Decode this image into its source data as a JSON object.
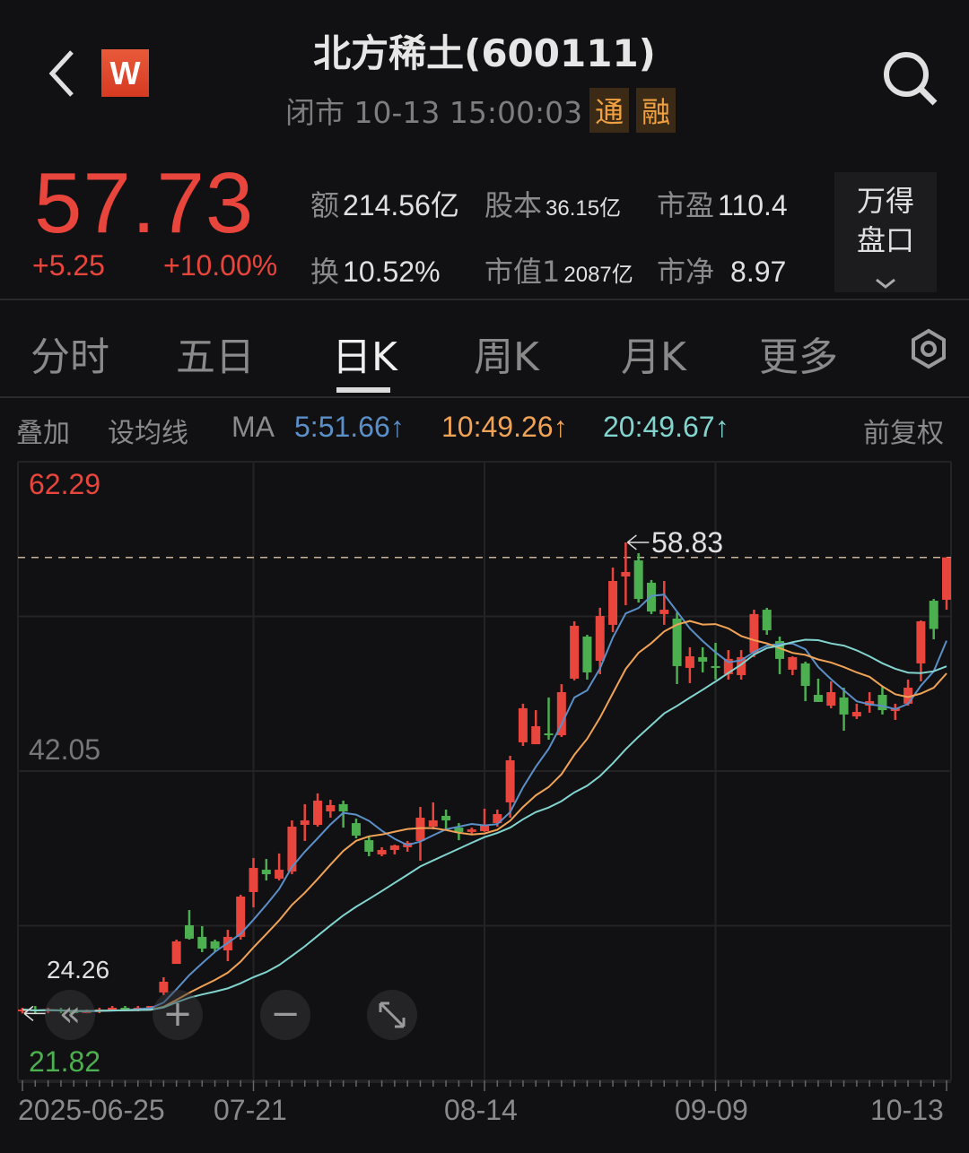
{
  "header": {
    "title": "北方稀土(600111)",
    "status": "闭市 10-13 15:00:03",
    "tags": [
      "通",
      "融"
    ],
    "logo_letter": "W",
    "icons": {
      "back": "chevron-left-icon",
      "search": "search-icon",
      "settings": "settings-hexagon-icon"
    }
  },
  "quote": {
    "price": "57.73",
    "change": "+5.25",
    "change_pct": "+10.00%",
    "stats": [
      {
        "key": "额",
        "value": "214.56亿",
        "small": false
      },
      {
        "key": "股本",
        "value": "36.15亿",
        "small": true
      },
      {
        "key": "市盈",
        "value": "110.4",
        "small": false
      },
      {
        "key": "换",
        "value": "10.52%",
        "small": false
      },
      {
        "key": "市值1",
        "value": "2087亿",
        "small": true
      },
      {
        "key": "市净",
        "value": "8.97",
        "small": false
      }
    ],
    "wind_button": [
      "万得",
      "盘口"
    ]
  },
  "tabs": [
    {
      "label": "分时",
      "active": false
    },
    {
      "label": "五日",
      "active": false
    },
    {
      "label": "日K",
      "active": true
    },
    {
      "label": "周K",
      "active": false
    },
    {
      "label": "月K",
      "active": false
    },
    {
      "label": "更多",
      "active": false
    }
  ],
  "ma_bar": {
    "overlay": "叠加",
    "set_ma": "设均线",
    "ma": "MA",
    "ma5": "5:51.66↑",
    "ma10": "10:49.26↑",
    "ma20": "20:49.67↑",
    "adjust": "前复权"
  },
  "colors": {
    "up": "#e8453c",
    "down": "#4caf50",
    "ma5": "#5b8fc7",
    "ma10": "#f0a356",
    "ma20": "#82d4cf",
    "background": "#111113"
  },
  "chart_data": {
    "type": "candlestick",
    "ylim": [
      19.35,
      64.75
    ],
    "y_labels": {
      "top": "62.29",
      "mid": "42.05",
      "bottom": "21.82"
    },
    "high_marker": "58.83",
    "low_marker": "24.26",
    "last_price": 57.73,
    "x_ticks": [
      {
        "label": "2025-06-25",
        "index": 0
      },
      {
        "label": "07-21",
        "index": 18
      },
      {
        "label": "08-14",
        "index": 36
      },
      {
        "label": "09-09",
        "index": 54
      },
      {
        "label": "10-13",
        "index": 72
      }
    ],
    "ma_periods": [
      5,
      10,
      20
    ],
    "ohlc": [
      [
        24.42,
        24.68,
        24.26,
        24.55
      ],
      [
        24.55,
        24.81,
        24.28,
        24.42
      ],
      [
        24.42,
        24.68,
        24.28,
        24.55
      ],
      [
        24.55,
        24.68,
        24.28,
        24.42
      ],
      [
        24.42,
        24.55,
        24.28,
        24.28
      ],
      [
        24.28,
        24.55,
        24.28,
        24.42
      ],
      [
        24.42,
        24.68,
        24.28,
        24.55
      ],
      [
        24.55,
        24.81,
        24.42,
        24.68
      ],
      [
        24.68,
        24.81,
        24.42,
        24.55
      ],
      [
        24.55,
        24.81,
        24.42,
        24.68
      ],
      [
        24.68,
        24.81,
        24.55,
        24.81
      ],
      [
        25.8,
        26.92,
        25.6,
        26.59
      ],
      [
        27.9,
        29.68,
        27.9,
        29.55
      ],
      [
        30.73,
        31.85,
        29.68,
        29.75
      ],
      [
        29.88,
        30.67,
        28.76,
        29.02
      ],
      [
        29.55,
        29.68,
        28.76,
        29.02
      ],
      [
        28.89,
        30.4,
        28.1,
        29.88
      ],
      [
        29.88,
        32.97,
        29.68,
        32.84
      ],
      [
        33.17,
        35.67,
        32.05,
        34.94
      ],
      [
        34.81,
        35.6,
        34.02,
        34.48
      ],
      [
        34.15,
        36.0,
        34.02,
        34.81
      ],
      [
        34.68,
        38.43,
        34.48,
        37.97
      ],
      [
        38.1,
        39.62,
        36.92,
        38.43
      ],
      [
        38.1,
        40.41,
        37.97,
        39.88
      ],
      [
        39.09,
        39.94,
        38.63,
        39.55
      ],
      [
        39.62,
        39.88,
        37.9,
        39.09
      ],
      [
        38.23,
        38.56,
        37.11,
        37.31
      ],
      [
        36.98,
        37.25,
        35.8,
        36.13
      ],
      [
        35.93,
        36.46,
        35.8,
        36.26
      ],
      [
        36.26,
        36.65,
        35.93,
        36.59
      ],
      [
        36.46,
        36.92,
        36.13,
        36.79
      ],
      [
        36.92,
        39.42,
        35.47,
        38.63
      ],
      [
        37.97,
        39.75,
        37.77,
        38.43
      ],
      [
        38.76,
        39.22,
        37.77,
        38.43
      ],
      [
        37.9,
        38.23,
        36.98,
        37.58
      ],
      [
        37.58,
        37.9,
        37.45,
        37.77
      ],
      [
        37.64,
        39.29,
        37.58,
        38.1
      ],
      [
        38.23,
        39.22,
        37.97,
        38.89
      ],
      [
        39.75,
        43.17,
        38.63,
        42.84
      ],
      [
        44.16,
        46.99,
        43.89,
        46.66
      ],
      [
        44.02,
        46.52,
        44.02,
        45.34
      ],
      [
        44.81,
        47.45,
        44.35,
        44.68
      ],
      [
        44.68,
        48.43,
        44.55,
        47.84
      ],
      [
        48.83,
        53.04,
        48.7,
        52.71
      ],
      [
        51.92,
        52.05,
        48.76,
        49.29
      ],
      [
        50.14,
        54.03,
        49.16,
        53.43
      ],
      [
        52.78,
        56.99,
        52.25,
        56.0
      ],
      [
        56.33,
        58.83,
        54.22,
        56.66
      ],
      [
        57.51,
        58.04,
        54.42,
        54.68
      ],
      [
        55.87,
        56.07,
        53.57,
        53.76
      ],
      [
        53.57,
        56.0,
        52.78,
        53.89
      ],
      [
        53.24,
        53.7,
        48.43,
        49.75
      ],
      [
        49.62,
        51.13,
        48.5,
        50.47
      ],
      [
        50.41,
        51.13,
        49.29,
        50.08
      ],
      [
        49.75,
        51.46,
        48.76,
        49.62
      ],
      [
        49.16,
        50.93,
        48.76,
        50.28
      ],
      [
        49.09,
        50.93,
        48.76,
        50.41
      ],
      [
        50.74,
        53.89,
        50.41,
        53.57
      ],
      [
        53.89,
        54.03,
        52.05,
        52.38
      ],
      [
        51.59,
        51.92,
        49.16,
        50.28
      ],
      [
        49.49,
        50.47,
        49.09,
        50.41
      ],
      [
        49.95,
        50.08,
        47.18,
        48.3
      ],
      [
        47.64,
        48.83,
        47.12,
        47.12
      ],
      [
        46.85,
        48.63,
        46.66,
        47.84
      ],
      [
        47.45,
        48.17,
        45.01,
        46.2
      ],
      [
        46.06,
        46.99,
        45.87,
        46.39
      ],
      [
        46.85,
        47.84,
        46.33,
        47.18
      ],
      [
        47.64,
        48.3,
        46.2,
        46.52
      ],
      [
        46.46,
        46.99,
        45.8,
        46.66
      ],
      [
        46.99,
        48.76,
        46.85,
        48.17
      ],
      [
        49.95,
        53.1,
        48.63,
        53.04
      ],
      [
        54.55,
        54.68,
        51.72,
        52.48
      ],
      [
        54.62,
        57.73,
        53.89,
        57.73
      ]
    ]
  }
}
